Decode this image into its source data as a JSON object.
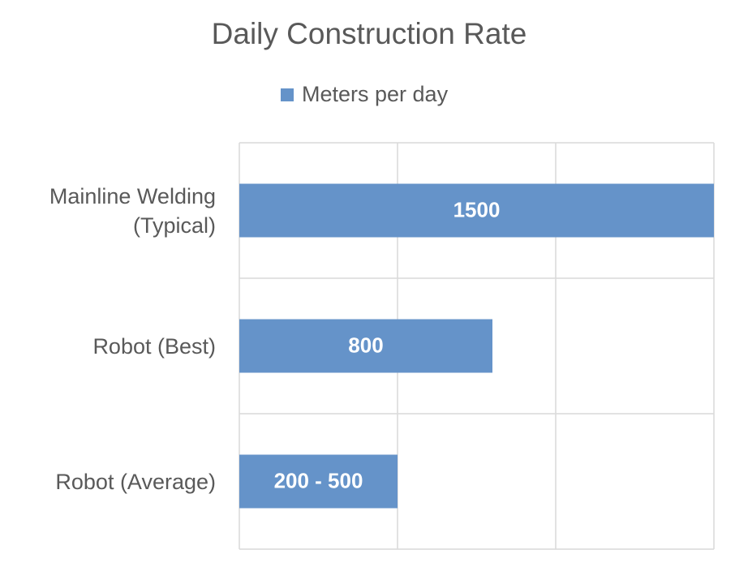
{
  "chart_data": {
    "type": "barh",
    "title": "Daily Construction Rate",
    "categories": [
      "Mainline Welding (Typical)",
      "Robot (Best)",
      "Robot (Average)"
    ],
    "series": [
      {
        "name": "Meters per day",
        "color": "#6593c9",
        "values": [
          1500,
          800,
          500
        ],
        "value_labels": [
          "1500",
          "800",
          "200 - 500"
        ]
      }
    ],
    "xlim": [
      0,
      1500
    ],
    "xticks": [
      0,
      500,
      1000,
      1500
    ],
    "grid": true,
    "legend": "top"
  }
}
